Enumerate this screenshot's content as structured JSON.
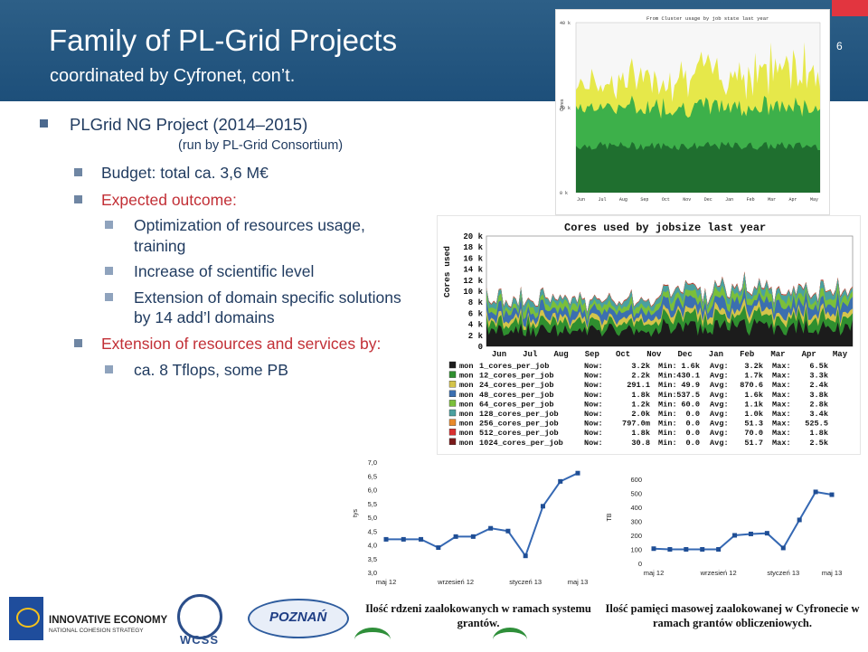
{
  "header": {
    "title": "Family of PL-Grid Projects",
    "subtitle": "coordinated by Cyfronet, con’t.",
    "slide_number": "6"
  },
  "content": {
    "project": "PLGrid NG  Project (2014–2015)",
    "consortium": "(run by PL-Grid Consortium)",
    "budget": "Budget:  total ca. 3,6 M€",
    "expected_outcome": "Expected outcome:",
    "outcomes": [
      "Optimization of resources usage,",
      "training",
      "Increase of scientific level",
      "Extension of domain specific solutions",
      "by 14 add’l domains"
    ],
    "extension": "Extension of resources and services by:",
    "capacity": "ca. 8 Tflops, some PB"
  },
  "colors": {
    "header_bg": "#1d4f7a",
    "accent_red": "#e2353f",
    "text_blue": "#1f3a5f",
    "text_red": "#c22f36"
  },
  "top_chart": {
    "title": "From Cluster usage by job state last year",
    "ylabel": "Cores",
    "ytick_labels": [
      "0 k",
      "20 k",
      "40 k"
    ],
    "xtick_labels": [
      "Jun",
      "Jul",
      "Aug",
      "Sep",
      "Oct",
      "Nov",
      "Dec",
      "Jan",
      "Feb",
      "Mar",
      "Apr",
      "May"
    ]
  },
  "jobsize_chart": {
    "title": "Cores used by jobsize last year",
    "ylabel": "Cores used",
    "yticks": [
      "0",
      "2 k",
      "4 k",
      "6 k",
      "8 k",
      "10 k",
      "12 k",
      "14 k",
      "16 k",
      "18 k",
      "20 k"
    ],
    "xticks": [
      "Jun",
      "Jul",
      "Aug",
      "Sep",
      "Oct",
      "Nov",
      "Dec",
      "Jan",
      "Feb",
      "Mar",
      "Apr",
      "May"
    ],
    "legend": [
      {
        "color": "#1c1c1c",
        "name": "1_cores_per_job",
        "now": "3.2k",
        "min": "1.6k",
        "avg": "3.2k",
        "max": "6.5k"
      },
      {
        "color": "#2f8f2f",
        "name": "12_cores_per_job",
        "now": "2.2k",
        "min": "430.1",
        "avg": "1.7k",
        "max": "3.3k"
      },
      {
        "color": "#d4c44a",
        "name": "24_cores_per_job",
        "now": "291.1",
        "min": "49.9",
        "avg": "870.6",
        "max": "2.4k"
      },
      {
        "color": "#3b6fb0",
        "name": "48_cores_per_job",
        "now": "1.8k",
        "min": "537.5",
        "avg": "1.6k",
        "max": "3.8k"
      },
      {
        "color": "#7bbf3a",
        "name": "64_cores_per_job",
        "now": "1.2k",
        "min": "60.0",
        "avg": "1.1k",
        "max": "2.8k"
      },
      {
        "color": "#4aa0a0",
        "name": "128_cores_per_job",
        "now": "2.0k",
        "min": "0.0",
        "avg": "1.0k",
        "max": "3.4k"
      },
      {
        "color": "#e98a2a",
        "name": "256_cores_per_job",
        "now": "797.0m",
        "min": "0.0",
        "avg": "51.3",
        "max": "525.5"
      },
      {
        "color": "#d83030",
        "name": "512_cores_per_job",
        "now": "1.8k",
        "min": "0.0",
        "avg": "70.0",
        "max": "1.8k"
      },
      {
        "color": "#7a1a1a",
        "name": "1024_cores_per_job",
        "now": "30.8",
        "min": "0.0",
        "avg": "51.7",
        "max": "2.5k"
      }
    ]
  },
  "chart_data": [
    {
      "type": "line",
      "xlabel": "",
      "ylabel": "tys",
      "ylim": [
        3.0,
        7.0
      ],
      "yticks": [
        "3,0",
        "3,5",
        "4,0",
        "4,5",
        "5,0",
        "5,5",
        "6,0",
        "6,5",
        "7,0"
      ],
      "xtick_labels": [
        "maj 12",
        "wrzesień 12",
        "styczeń 13",
        "maj 13"
      ],
      "series": [
        {
          "values": [
            4.2,
            4.2,
            4.2,
            3.9,
            4.3,
            4.3,
            4.6,
            4.5,
            3.6,
            5.4,
            6.3,
            6.6
          ]
        }
      ],
      "caption": "Ilość rdzeni zaalokowanych w ramach systemu grantów."
    },
    {
      "type": "line",
      "xlabel": "",
      "ylabel": "TB",
      "ylim": [
        0,
        600
      ],
      "yticks": [
        "0",
        "100",
        "200",
        "300",
        "400",
        "500",
        "600"
      ],
      "xtick_labels": [
        "maj 12",
        "wrzesień 12",
        "styczeń 13",
        "maj 13"
      ],
      "series": [
        {
          "values": [
            105,
            100,
            100,
            100,
            100,
            200,
            210,
            215,
            110,
            310,
            510,
            490
          ]
        }
      ],
      "caption": "Ilość pamięci masowej zaalokowanej w Cyfronecie w ramach grantów obliczeniowych."
    }
  ],
  "footer": {
    "ie_line1": "INNOVATIVE ECONOMY",
    "ie_line2": "NATIONAL COHESION STRATEGY",
    "wcss": "WCSS",
    "poznan": "POZNAŃ"
  }
}
